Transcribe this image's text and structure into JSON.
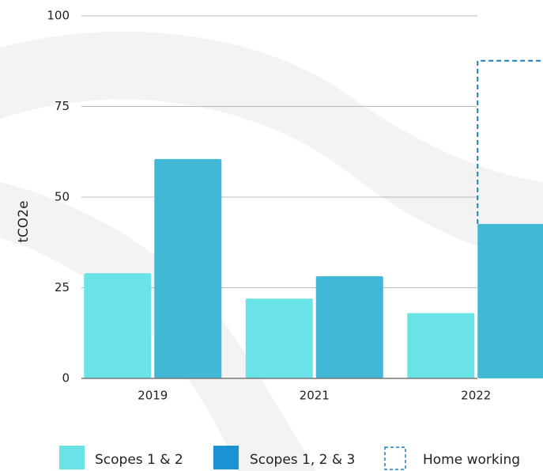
{
  "chart_data": {
    "type": "bar",
    "y_label": "tCO2e",
    "categories": [
      "2019",
      "2021",
      "2022"
    ],
    "series": [
      {
        "name": "Scopes 1 & 2",
        "color": "#6ae3e6",
        "values": [
          29,
          22,
          18
        ]
      },
      {
        "name": "Scopes 1, 2 & 3",
        "color": "#41b8d6",
        "legend_color": "#1a93d4",
        "values": [
          60.5,
          28.2,
          42.6
        ]
      },
      {
        "name": "Home working",
        "color": "#1a7fb5",
        "style": "dashed",
        "stacked": true,
        "values": [
          null,
          null,
          45
        ]
      }
    ],
    "ylim": [
      0,
      100
    ],
    "yticks": [
      0,
      25,
      50,
      75,
      100
    ],
    "grid": true
  }
}
